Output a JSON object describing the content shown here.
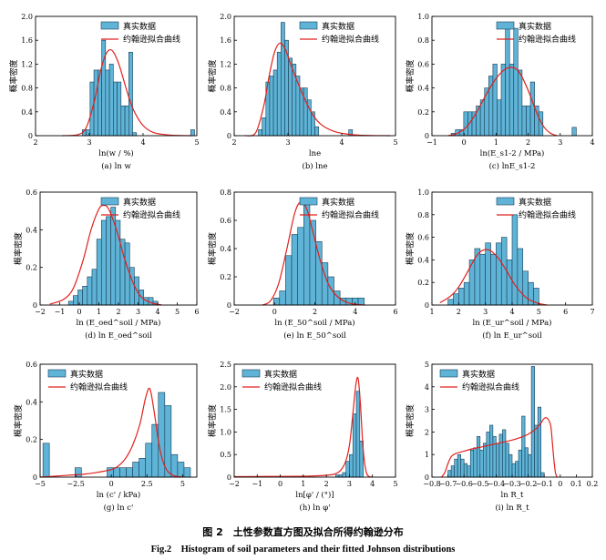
{
  "legend": {
    "hist_label": "真实数据",
    "fit_label": "约翰逊拟合曲线"
  },
  "ylabel_common": "概率密度",
  "colors": {
    "bar": "#5eb3d6",
    "bar_edge": "#1a3d55",
    "curve": "#e0211d",
    "axis": "#000000"
  },
  "figure_caption_cn": "图 2　土性参数直方图及拟合所得约翰逊分布",
  "figure_caption_en": "Fig.2　Histogram of soil parameters and their fitted Johnson distributions",
  "chart_data": [
    {
      "id": "a",
      "type": "bar",
      "panel_label": "(a)",
      "caption": "(a)  ln w",
      "xlabel": "ln(w / %)",
      "xlim": [
        2,
        5
      ],
      "ylim": [
        0,
        2.0
      ],
      "xticks": [
        2,
        3,
        4,
        5
      ],
      "yticks": [
        0,
        0.4,
        0.8,
        1.2,
        1.6,
        2.0
      ],
      "bins": {
        "start": 2.87,
        "width": 0.072,
        "values": [
          0.1,
          0.1,
          0.9,
          1.1,
          1.1,
          1.6,
          1.1,
          1.2,
          0.9,
          0.9,
          0.5,
          0.5,
          1.4,
          0.05,
          0,
          0,
          0,
          0,
          0,
          0,
          0,
          0,
          0,
          0,
          0,
          0,
          0,
          0,
          0.1
        ]
      },
      "fit_curve": {
        "x": [
          2.5,
          2.8,
          2.95,
          3.1,
          3.2,
          3.3,
          3.38,
          3.45,
          3.55,
          3.65,
          3.75,
          3.85,
          4.0,
          4.2,
          4.5,
          4.9
        ],
        "y": [
          0,
          0.02,
          0.15,
          0.6,
          1.05,
          1.35,
          1.44,
          1.4,
          1.2,
          0.9,
          0.6,
          0.38,
          0.17,
          0.05,
          0.01,
          0
        ]
      }
    },
    {
      "id": "b",
      "type": "bar",
      "panel_label": "(b)",
      "caption": "(b)  lne",
      "xlabel": "lne",
      "xlim": [
        2,
        5
      ],
      "ylim": [
        0,
        2.0
      ],
      "xticks": [
        2,
        3,
        4,
        5
      ],
      "yticks": [
        0,
        0.4,
        0.8,
        1.2,
        1.6,
        2.0
      ],
      "bins": {
        "start": 2.45,
        "width": 0.07,
        "values": [
          0.1,
          0.3,
          0.9,
          1.0,
          1.1,
          1.4,
          1.9,
          1.6,
          1.3,
          1.2,
          1.0,
          0.8,
          0.8,
          0.6,
          0.4,
          0.15,
          0,
          0,
          0,
          0,
          0,
          0,
          0,
          0,
          0.1
        ]
      },
      "fit_curve": {
        "x": [
          2.2,
          2.4,
          2.55,
          2.65,
          2.75,
          2.85,
          2.95,
          3.05,
          3.2,
          3.4,
          3.6,
          3.9,
          4.3,
          4.9
        ],
        "y": [
          0,
          0.05,
          0.5,
          1.0,
          1.4,
          1.55,
          1.45,
          1.2,
          0.85,
          0.45,
          0.2,
          0.06,
          0.01,
          0
        ]
      }
    },
    {
      "id": "c",
      "type": "bar",
      "panel_label": "(c)",
      "caption": "(c)  lnE_s1-2",
      "xlabel": "ln(E_s1-2 / MPa)",
      "xlim": [
        -1,
        4
      ],
      "ylim": [
        0,
        1.0
      ],
      "xticks": [
        -1,
        0,
        1,
        2,
        3,
        4
      ],
      "yticks": [
        0,
        0.2,
        0.4,
        0.6,
        0.8,
        1.0
      ],
      "bins": {
        "start": -0.4,
        "width": 0.13,
        "values": [
          0.02,
          0.05,
          0.05,
          0.2,
          0.2,
          0.2,
          0.25,
          0.3,
          0.4,
          0.5,
          0.6,
          0.3,
          0.6,
          0.95,
          0.6,
          0.9,
          0.55,
          0.25,
          0.25,
          0.45,
          0.25,
          0.2,
          0,
          0,
          0,
          0,
          0,
          0,
          0,
          0.07
        ]
      },
      "fit_curve": {
        "x": [
          -0.5,
          -0.2,
          0.1,
          0.4,
          0.7,
          1.0,
          1.3,
          1.55,
          1.75,
          2.0,
          2.3,
          2.5,
          2.7,
          2.9
        ],
        "y": [
          0,
          0.02,
          0.08,
          0.2,
          0.35,
          0.48,
          0.56,
          0.57,
          0.52,
          0.38,
          0.17,
          0.07,
          0.02,
          0
        ]
      }
    },
    {
      "id": "d",
      "type": "bar",
      "panel_label": "(d)",
      "caption": "(d)  ln E_oed^soil",
      "xlabel": "ln (E_oed^soil / MPa)",
      "xlim": [
        -2,
        6
      ],
      "ylim": [
        0,
        0.6
      ],
      "xticks": [
        -2,
        -1,
        0,
        1,
        2,
        3,
        4,
        5,
        6
      ],
      "yticks": [
        0,
        0.2,
        0.4,
        0.6
      ],
      "bins": {
        "start": -0.55,
        "width": 0.24,
        "values": [
          0.02,
          0.05,
          0.08,
          0.1,
          0.15,
          0.19,
          0.35,
          0.45,
          0.47,
          0.52,
          0.45,
          0.35,
          0.33,
          0.2,
          0.15,
          0.08,
          0.04,
          0.04,
          0.02
        ]
      },
      "fit_curve": {
        "x": [
          -1.5,
          -0.8,
          -0.3,
          0.2,
          0.6,
          1.0,
          1.25,
          1.5,
          1.9,
          2.3,
          2.7,
          3.1,
          3.6,
          4.2
        ],
        "y": [
          0.005,
          0.03,
          0.09,
          0.24,
          0.4,
          0.51,
          0.53,
          0.51,
          0.4,
          0.25,
          0.13,
          0.05,
          0.015,
          0
        ]
      }
    },
    {
      "id": "e",
      "type": "bar",
      "panel_label": "(e)",
      "caption": "(e)  ln E_50^soil",
      "xlabel": "ln (E_50^soil / MPa)",
      "xlim": [
        -2,
        6
      ],
      "ylim": [
        0,
        0.8
      ],
      "xticks": [
        -2,
        0,
        2,
        4,
        6
      ],
      "yticks": [
        0,
        0.2,
        0.4,
        0.6,
        0.8
      ],
      "bins": {
        "start": -0.05,
        "width": 0.3,
        "values": [
          0.05,
          0.1,
          0.35,
          0.5,
          0.55,
          0.75,
          0.6,
          0.45,
          0.3,
          0.2,
          0.1,
          0.05,
          0.05,
          0.05,
          0.05
        ]
      },
      "fit_curve": {
        "x": [
          -0.6,
          -0.2,
          0.2,
          0.6,
          1.0,
          1.3,
          1.6,
          1.9,
          2.3,
          2.7,
          3.2,
          3.8,
          4.5
        ],
        "y": [
          0,
          0.03,
          0.15,
          0.39,
          0.65,
          0.73,
          0.68,
          0.52,
          0.3,
          0.14,
          0.05,
          0.01,
          0
        ]
      }
    },
    {
      "id": "f",
      "type": "bar",
      "panel_label": "(f)",
      "caption": "(f)  ln E_ur^soil",
      "xlabel": "ln (E_ur^soil / MPa)",
      "xlim": [
        1,
        7
      ],
      "ylim": [
        0,
        1.0
      ],
      "xticks": [
        1,
        2,
        3,
        4,
        5,
        6,
        7
      ],
      "yticks": [
        0,
        0.2,
        0.4,
        0.6,
        0.8,
        1.0
      ],
      "bins": {
        "start": 1.6,
        "width": 0.2,
        "values": [
          0.05,
          0.1,
          0.15,
          0.2,
          0.4,
          0.5,
          0.45,
          0.55,
          0.45,
          0.55,
          0.6,
          0.4,
          0.8,
          0.5,
          0.3,
          0.2,
          0.15
        ]
      },
      "fit_curve": {
        "x": [
          1.3,
          1.7,
          2.0,
          2.3,
          2.6,
          2.8,
          3.0,
          3.2,
          3.5,
          3.8,
          4.1,
          4.5,
          4.9,
          5.3
        ],
        "y": [
          0.02,
          0.08,
          0.16,
          0.28,
          0.41,
          0.47,
          0.49,
          0.48,
          0.41,
          0.3,
          0.18,
          0.07,
          0.02,
          0
        ]
      }
    },
    {
      "id": "g",
      "type": "bar",
      "panel_label": "(g)",
      "caption": "(g)  ln c'",
      "xlabel": "ln (c' / kPa)",
      "xlim": [
        -5,
        6
      ],
      "ylim": [
        0,
        0.6
      ],
      "xticks": [
        -5,
        -2.5,
        0,
        2.5,
        5
      ],
      "yticks": [
        0,
        0.2,
        0.4,
        0.6
      ],
      "bins": {
        "start": -4.8,
        "width": 0.45,
        "values": [
          0.18,
          0,
          0,
          0,
          0,
          0.05,
          0,
          0,
          0,
          0,
          0.05,
          0.05,
          0.05,
          0.05,
          0.08,
          0.1,
          0.18,
          0.28,
          0.45,
          0.38,
          0.12,
          0.08,
          0.05
        ]
      },
      "fit_curve": {
        "x": [
          -5,
          -4,
          -3,
          -2,
          -1,
          0,
          0.5,
          1.0,
          1.5,
          2.0,
          2.4,
          2.7,
          3.0,
          3.4,
          3.8,
          4.3,
          5.0
        ],
        "y": [
          0.0,
          0.005,
          0.01,
          0.015,
          0.025,
          0.04,
          0.06,
          0.1,
          0.17,
          0.28,
          0.42,
          0.47,
          0.35,
          0.15,
          0.05,
          0.01,
          0
        ]
      }
    },
    {
      "id": "h",
      "type": "bar",
      "panel_label": "(h)",
      "caption": "(h)  ln φ'",
      "xlabel": "ln[φ' / (°)]",
      "xlim": [
        -2,
        5
      ],
      "ylim": [
        0,
        2.5
      ],
      "xticks": [
        -2,
        -1,
        0,
        1,
        2,
        3,
        4,
        5
      ],
      "yticks": [
        0,
        0.5,
        1.0,
        1.5,
        2.0,
        2.5
      ],
      "bins": {
        "start": 2.4,
        "width": 0.15,
        "values": [
          0.05,
          0.05,
          0.1,
          0.35,
          0.5,
          1.4,
          1.9,
          0.8
        ]
      },
      "fit_curve": {
        "x": [
          -2,
          -0.5,
          1.0,
          2.0,
          2.5,
          2.8,
          3.0,
          3.15,
          3.28,
          3.38,
          3.48,
          3.6,
          3.75,
          4.0
        ],
        "y": [
          0.01,
          0.015,
          0.02,
          0.04,
          0.1,
          0.3,
          0.7,
          1.4,
          2.05,
          2.18,
          1.6,
          0.6,
          0.08,
          0
        ]
      }
    },
    {
      "id": "i",
      "type": "bar",
      "panel_label": "(i)",
      "caption": "(i)  ln R_t",
      "xlabel": "ln R_t",
      "xlim": [
        -0.8,
        0.2
      ],
      "ylim": [
        0,
        5
      ],
      "xticks": [
        -0.8,
        -0.7,
        -0.6,
        -0.5,
        -0.4,
        -0.3,
        -0.2,
        -0.1,
        0,
        0.1,
        0.2
      ],
      "yticks": [
        0,
        1,
        2,
        3,
        4,
        5
      ],
      "bins": {
        "start": -0.7,
        "width": 0.02,
        "values": [
          0.3,
          0.5,
          0.8,
          1.0,
          0.8,
          0.6,
          0.5,
          1.2,
          1.3,
          1.8,
          1.2,
          1.5,
          2.0,
          2.3,
          1.8,
          1.5,
          1.9,
          2.1,
          1.5,
          1.0,
          0.6,
          0.7,
          1.2,
          2.7,
          1.3,
          1.0,
          4.9,
          2.3,
          3.1,
          0.2
        ]
      },
      "fit_curve": {
        "x": [
          -0.74,
          -0.72,
          -0.7,
          -0.68,
          -0.65,
          -0.6,
          -0.55,
          -0.5,
          -0.45,
          -0.4,
          -0.35,
          -0.3,
          -0.25,
          -0.2,
          -0.15,
          -0.12,
          -0.1,
          -0.08,
          -0.06,
          -0.05,
          -0.04,
          -0.03,
          -0.02
        ],
        "y": [
          0,
          0.2,
          0.6,
          0.9,
          1.05,
          1.15,
          1.25,
          1.32,
          1.4,
          1.48,
          1.56,
          1.64,
          1.75,
          1.9,
          2.15,
          2.4,
          2.6,
          2.6,
          2.3,
          1.6,
          0.8,
          0.2,
          0
        ]
      }
    }
  ]
}
